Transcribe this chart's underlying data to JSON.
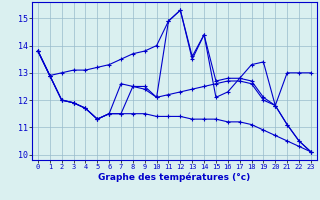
{
  "xlabel": "Graphe des températures (°c)",
  "background_color": "#daf0f0",
  "line_color": "#0000cc",
  "xlim": [
    -0.5,
    23.5
  ],
  "ylim": [
    9.8,
    15.6
  ],
  "yticks": [
    10,
    11,
    12,
    13,
    14,
    15
  ],
  "xticks": [
    0,
    1,
    2,
    3,
    4,
    5,
    6,
    7,
    8,
    9,
    10,
    11,
    12,
    13,
    14,
    15,
    16,
    17,
    18,
    19,
    20,
    21,
    22,
    23
  ],
  "series": [
    [
      13.8,
      12.9,
      13.0,
      13.1,
      13.1,
      13.2,
      13.3,
      13.5,
      13.7,
      13.8,
      14.0,
      14.9,
      15.3,
      13.6,
      14.4,
      12.7,
      12.8,
      12.8,
      13.3,
      13.4,
      11.8,
      13.0,
      13.0,
      13.0
    ],
    [
      13.8,
      12.9,
      12.0,
      11.9,
      11.7,
      11.3,
      11.5,
      12.6,
      12.5,
      12.5,
      12.1,
      14.9,
      15.3,
      13.5,
      14.4,
      12.1,
      12.3,
      12.8,
      12.7,
      12.1,
      11.8,
      11.1,
      10.5,
      10.1
    ],
    [
      13.8,
      12.9,
      12.0,
      11.9,
      11.7,
      11.3,
      11.5,
      11.5,
      12.5,
      12.4,
      12.1,
      12.2,
      12.3,
      12.4,
      12.5,
      12.6,
      12.7,
      12.7,
      12.6,
      12.0,
      11.8,
      11.1,
      10.5,
      10.1
    ],
    [
      13.8,
      12.9,
      12.0,
      11.9,
      11.7,
      11.3,
      11.5,
      11.5,
      11.5,
      11.5,
      11.4,
      11.4,
      11.4,
      11.3,
      11.3,
      11.3,
      11.2,
      11.2,
      11.1,
      10.9,
      10.7,
      10.5,
      10.3,
      10.1
    ]
  ]
}
